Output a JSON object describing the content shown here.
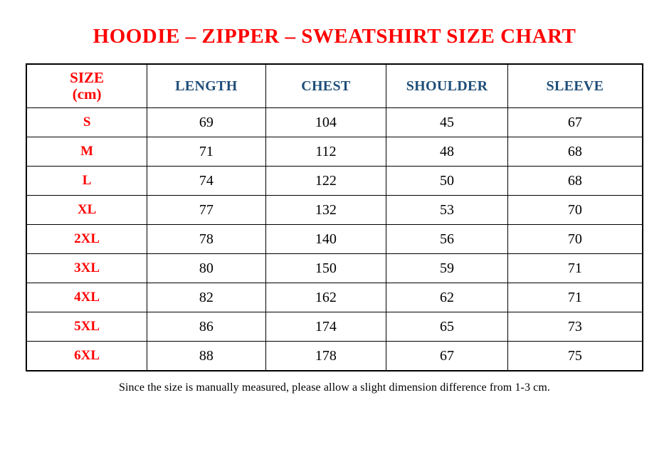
{
  "page": {
    "top_dot": ".",
    "title": "HOODIE – ZIPPER – SWEATSHIRT SIZE CHART",
    "footnote": "Since the size is manually measured, please allow a slight dimension difference from 1-3 cm."
  },
  "colors": {
    "title_red": "#FF0000",
    "size_label_red": "#FF0000",
    "header_blue": "#1F4E79",
    "value_black": "#000000",
    "border": "#000000",
    "background": "#FFFFFF"
  },
  "table": {
    "size_header": {
      "line1": "SIZE",
      "line2": "(cm)"
    },
    "measure_columns": [
      "LENGTH",
      "CHEST",
      "SHOULDER",
      "SLEEVE"
    ],
    "rows": [
      {
        "size": "S",
        "values": [
          "69",
          "104",
          "45",
          "67"
        ]
      },
      {
        "size": "M",
        "values": [
          "71",
          "112",
          "48",
          "68"
        ]
      },
      {
        "size": "L",
        "values": [
          "74",
          "122",
          "50",
          "68"
        ]
      },
      {
        "size": "XL",
        "values": [
          "77",
          "132",
          "53",
          "70"
        ]
      },
      {
        "size": "2XL",
        "values": [
          "78",
          "140",
          "56",
          "70"
        ]
      },
      {
        "size": "3XL",
        "values": [
          "80",
          "150",
          "59",
          "71"
        ]
      },
      {
        "size": "4XL",
        "values": [
          "82",
          "162",
          "62",
          "71"
        ]
      },
      {
        "size": "5XL",
        "values": [
          "86",
          "174",
          "65",
          "73"
        ]
      },
      {
        "size": "6XL",
        "values": [
          "88",
          "178",
          "67",
          "75"
        ]
      }
    ]
  },
  "chart_data": {
    "type": "table",
    "title": "HOODIE – ZIPPER – SWEATSHIRT SIZE CHART",
    "unit": "cm",
    "columns": [
      "SIZE (cm)",
      "LENGTH",
      "CHEST",
      "SHOULDER",
      "SLEEVE"
    ],
    "rows": [
      [
        "S",
        69,
        104,
        45,
        67
      ],
      [
        "M",
        71,
        112,
        48,
        68
      ],
      [
        "L",
        74,
        122,
        50,
        68
      ],
      [
        "XL",
        77,
        132,
        53,
        70
      ],
      [
        "2XL",
        78,
        140,
        56,
        70
      ],
      [
        "3XL",
        80,
        150,
        59,
        71
      ],
      [
        "4XL",
        82,
        162,
        62,
        71
      ],
      [
        "5XL",
        86,
        174,
        65,
        73
      ],
      [
        "6XL",
        88,
        178,
        67,
        75
      ]
    ],
    "footnote": "Since the size is manually measured, please allow a slight dimension difference from 1-3 cm."
  }
}
